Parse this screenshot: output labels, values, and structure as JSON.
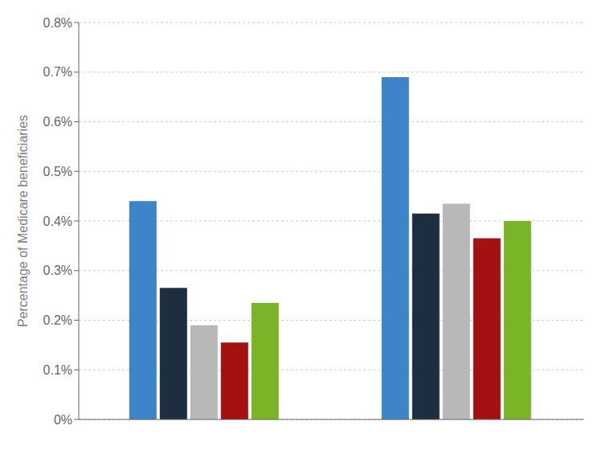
{
  "chart_data": {
    "type": "bar",
    "ylabel": "Percentage of Medicare beneficiaries",
    "categories": [
      null,
      null
    ],
    "series": [
      {
        "color": "#3d85c8",
        "values": [
          0.0044,
          0.0069
        ]
      },
      {
        "color": "#1c2e40",
        "values": [
          0.00265,
          0.00415
        ]
      },
      {
        "color": "#b8b8b8",
        "values": [
          0.0019,
          0.00435
        ]
      },
      {
        "color": "#a51010",
        "values": [
          0.00155,
          0.00365
        ]
      },
      {
        "color": "#7ab528",
        "values": [
          0.00235,
          0.004
        ]
      }
    ],
    "ylim": [
      0,
      0.008
    ],
    "yticks": [
      {
        "value": 0,
        "label": "0%"
      },
      {
        "value": 0.001,
        "label": "0.1%"
      },
      {
        "value": 0.002,
        "label": "0.2%"
      },
      {
        "value": 0.003,
        "label": "0.3%"
      },
      {
        "value": 0.004,
        "label": "0.4%"
      },
      {
        "value": 0.005,
        "label": "0.5%"
      },
      {
        "value": 0.006,
        "label": "0.6%"
      },
      {
        "value": 0.007,
        "label": "0.7%"
      },
      {
        "value": 0.008,
        "label": "0.8%"
      }
    ],
    "grid": true,
    "tick_labels": "y"
  }
}
